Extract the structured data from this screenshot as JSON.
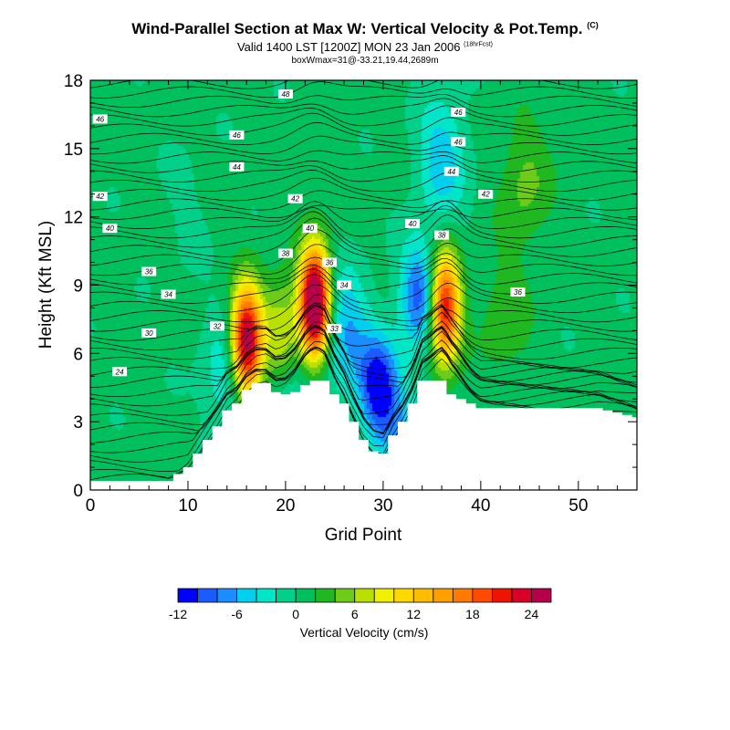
{
  "header": {
    "title": "Wind-Parallel Section at Max W: Vertical Velocity & Pot.Temp.",
    "title_mark": "(C)",
    "valid": "Valid 1400 LST [1200Z] MON 23 Jan 2006",
    "valid_mark": "(18hrFcst)",
    "box_info": "boxWmax=31@-33.21,19.44,2689m"
  },
  "chart_data": {
    "type": "heatmap",
    "subtype": "filled-contour cross-section with potential-temperature isolines",
    "xlabel": "Grid Point",
    "ylabel": "Height (Kft MSL)",
    "xlim": [
      0,
      56
    ],
    "ylim": [
      0,
      18
    ],
    "x_ticks": [
      0,
      10,
      20,
      30,
      40,
      50
    ],
    "y_ticks": [
      0,
      3,
      6,
      9,
      12,
      15,
      18
    ],
    "terrain_top_kft": [
      0.4,
      0.4,
      0.4,
      0.4,
      0.4,
      0.4,
      0.4,
      0.4,
      0.4,
      0.7,
      1.0,
      1.6,
      2.2,
      2.8,
      3.5,
      3.8,
      4.4,
      4.7,
      4.7,
      4.3,
      4.2,
      4.3,
      4.6,
      4.8,
      4.8,
      4.2,
      3.8,
      3.0,
      2.2,
      1.7,
      1.6,
      2.4,
      3.0,
      3.8,
      4.8,
      4.8,
      4.8,
      4.2,
      4.0,
      3.8,
      3.6,
      3.6,
      3.6,
      3.6,
      3.6,
      3.6,
      3.6,
      3.6,
      3.6,
      3.6,
      3.6,
      3.6,
      3.6,
      3.5,
      3.4,
      3.3,
      3.2
    ],
    "w_features_cms": [
      {
        "x": 16.0,
        "h_kft": 6.5,
        "peak": 27
      },
      {
        "x": 23.0,
        "h_kft": 8.2,
        "peak": 31
      },
      {
        "x": 36.3,
        "h_kft": 8.0,
        "peak": 22
      },
      {
        "x": 19.5,
        "h_kft": 6.8,
        "peak": 9
      },
      {
        "x": 29.5,
        "h_kft": 4.5,
        "peak": -12
      },
      {
        "x": 33.8,
        "h_kft": 8.6,
        "peak": -10
      },
      {
        "x": 26.0,
        "h_kft": 7.0,
        "peak": -7
      },
      {
        "x": 14.2,
        "h_kft": 5.0,
        "peak": -5
      },
      {
        "x": 20.0,
        "h_kft": 4.8,
        "peak": -4
      },
      {
        "x": 36.0,
        "h_kft": 14.5,
        "peak": -6
      },
      {
        "x": 32.0,
        "h_kft": 2.5,
        "peak": -5
      },
      {
        "x": 42.5,
        "h_kft": 7.5,
        "peak": 3
      },
      {
        "x": 44.5,
        "h_kft": 13.5,
        "peak": 4
      },
      {
        "x": 10.0,
        "h_kft": 12.5,
        "peak": -1
      }
    ],
    "theta_labels": [
      {
        "label": "48",
        "x": 20.0,
        "h_kft": 17.4
      },
      {
        "label": "46",
        "x": 1.0,
        "h_kft": 16.3
      },
      {
        "label": "46",
        "x": 15.0,
        "h_kft": 15.6
      },
      {
        "label": "46",
        "x": 37.7,
        "h_kft": 16.6
      },
      {
        "label": "46",
        "x": 37.7,
        "h_kft": 15.3
      },
      {
        "label": "44",
        "x": 15.0,
        "h_kft": 14.2
      },
      {
        "label": "44",
        "x": 37.0,
        "h_kft": 14.0
      },
      {
        "label": "42",
        "x": 1.0,
        "h_kft": 12.9
      },
      {
        "label": "42",
        "x": 21.0,
        "h_kft": 12.8
      },
      {
        "label": "42",
        "x": 40.5,
        "h_kft": 13.0
      },
      {
        "label": "40",
        "x": 2.0,
        "h_kft": 11.5
      },
      {
        "label": "40",
        "x": 22.5,
        "h_kft": 11.5
      },
      {
        "label": "40",
        "x": 33.0,
        "h_kft": 11.7
      },
      {
        "label": "38",
        "x": 20.0,
        "h_kft": 10.4
      },
      {
        "label": "38",
        "x": 36.0,
        "h_kft": 11.2
      },
      {
        "label": "36",
        "x": 6.0,
        "h_kft": 9.6
      },
      {
        "label": "36",
        "x": 24.5,
        "h_kft": 10.0
      },
      {
        "label": "36",
        "x": 43.8,
        "h_kft": 8.7
      },
      {
        "label": "34",
        "x": 8.0,
        "h_kft": 8.6
      },
      {
        "label": "34",
        "x": 26.0,
        "h_kft": 9.0
      },
      {
        "label": "33",
        "x": 25.0,
        "h_kft": 7.1
      },
      {
        "label": "32",
        "x": 13.0,
        "h_kft": 7.2
      },
      {
        "label": "30",
        "x": 6.0,
        "h_kft": 6.9
      },
      {
        "label": "24",
        "x": 3.0,
        "h_kft": 5.2
      }
    ],
    "colorbar": {
      "title": "Vertical Velocity (cm/s)",
      "levels": [
        -12,
        -10,
        -8,
        -6,
        -4,
        -2,
        0,
        2,
        4,
        6,
        8,
        10,
        12,
        14,
        16,
        18,
        20,
        22,
        24,
        26
      ],
      "colors": [
        "#0000ff",
        "#1a5cff",
        "#1c8dff",
        "#00d0ee",
        "#00e6c6",
        "#00d08a",
        "#00c05e",
        "#20b820",
        "#6ecb1a",
        "#b8e000",
        "#f0f000",
        "#ffd800",
        "#ffbc00",
        "#ffa000",
        "#ff7a00",
        "#ff4a00",
        "#ee1400",
        "#d80028",
        "#b8004a"
      ],
      "tick_labels": [
        "-12",
        "-6",
        "0",
        "6",
        "12",
        "18",
        "24"
      ],
      "tick_values": [
        -12,
        -6,
        0,
        6,
        12,
        18,
        24
      ]
    }
  }
}
